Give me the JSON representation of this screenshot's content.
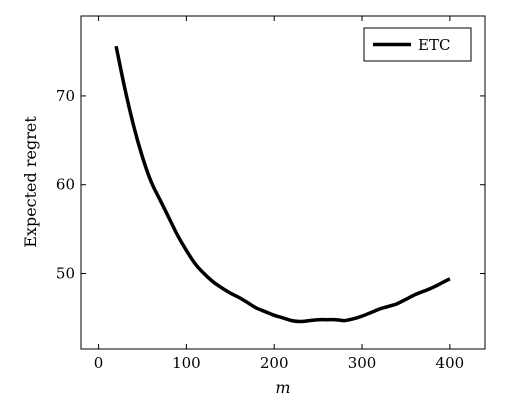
{
  "chart_data": {
    "type": "line",
    "xlabel": "m",
    "ylabel": "Expected regret",
    "xlim": [
      -20,
      440
    ],
    "ylim": [
      41.5,
      79
    ],
    "xticks": [
      0,
      100,
      200,
      300,
      400
    ],
    "yticks": [
      50,
      60,
      70
    ],
    "grid": false,
    "legend_position": "top-right",
    "series": [
      {
        "name": "ETC",
        "color": "#000000",
        "x": [
          20,
          30,
          40,
          50,
          60,
          70,
          80,
          90,
          100,
          110,
          120,
          130,
          140,
          150,
          160,
          170,
          180,
          190,
          200,
          210,
          220,
          230,
          240,
          250,
          260,
          270,
          280,
          290,
          300,
          310,
          320,
          330,
          340,
          350,
          360,
          370,
          380,
          390,
          400
        ],
        "y": [
          75.6,
          70.8,
          66.6,
          63.1,
          60.3,
          58.3,
          56.3,
          54.3,
          52.6,
          51.1,
          50.0,
          49.1,
          48.4,
          47.8,
          47.3,
          46.7,
          46.1,
          45.7,
          45.3,
          45.0,
          44.7,
          44.6,
          44.7,
          44.8,
          44.8,
          44.8,
          44.7,
          44.9,
          45.2,
          45.6,
          46.0,
          46.3,
          46.6,
          47.1,
          47.6,
          48.0,
          48.4,
          48.9,
          49.4
        ]
      }
    ]
  }
}
